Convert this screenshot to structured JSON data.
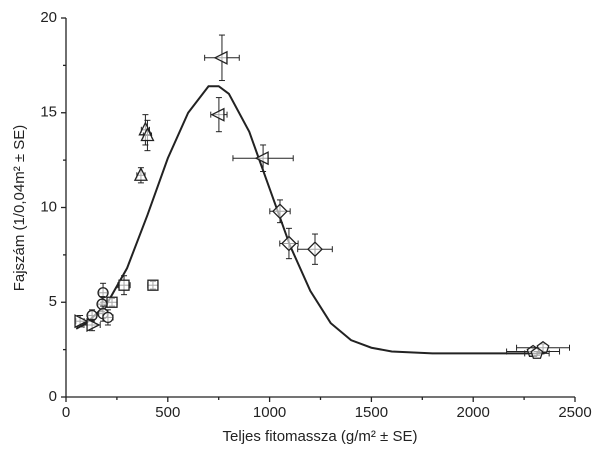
{
  "chart_data": {
    "type": "scatter",
    "x_label": "Teljes fitomassza (g/m² ± SE)",
    "y_label": "Fajszám (1/0,04m² ± SE)",
    "xlim": [
      0,
      2500
    ],
    "xticks": [
      0,
      500,
      1000,
      1500,
      2000,
      2500
    ],
    "ylim": [
      0,
      20
    ],
    "yticks": [
      0,
      5,
      10,
      15,
      20
    ],
    "color": "#222222",
    "series": [
      {
        "marker": "triangle-left",
        "x": [
          766,
          751,
          968
        ],
        "y": [
          17.9,
          14.9,
          12.6
        ],
        "xerr": [
          85,
          40,
          148
        ],
        "yerr": [
          1.2,
          0.9,
          0.7
        ]
      },
      {
        "marker": "triangle-up",
        "x": [
          390,
          400,
          368
        ],
        "y": [
          14.1,
          13.8,
          11.7
        ],
        "xerr": [
          20,
          20,
          20
        ],
        "yerr": [
          0.8,
          0.8,
          0.4
        ]
      },
      {
        "marker": "square",
        "x": [
          285,
          427,
          226
        ],
        "y": [
          5.9,
          5.9,
          5.0
        ],
        "xerr": [
          30,
          25,
          25
        ],
        "yerr": [
          0.5,
          0.2,
          0.2
        ]
      },
      {
        "marker": "diamond",
        "x": [
          1051,
          1095,
          1223
        ],
        "y": [
          9.8,
          8.1,
          7.8
        ],
        "xerr": [
          50,
          45,
          85
        ],
        "yerr": [
          0.6,
          0.8,
          0.8
        ]
      },
      {
        "marker": "circle",
        "x": [
          182,
          177,
          182,
          206,
          128
        ],
        "y": [
          5.5,
          4.9,
          4.4,
          4.2,
          4.3
        ],
        "xerr": [
          20,
          20,
          20,
          25,
          20
        ],
        "yerr": [
          0.5,
          0.4,
          0.4,
          0.4,
          0.3
        ]
      },
      {
        "marker": "triangle-right",
        "x": [
          69,
          128
        ],
        "y": [
          4.0,
          3.8
        ],
        "xerr": [
          20,
          40
        ],
        "yerr": [
          0.3,
          0.3
        ]
      },
      {
        "marker": "pentagon",
        "x": [
          2294,
          2343,
          2313
        ],
        "y": [
          2.4,
          2.6,
          2.3
        ],
        "xerr": [
          130,
          130,
          60
        ],
        "yerr": [
          0.2,
          0.2,
          0.1
        ]
      }
    ],
    "fit": {
      "x": [
        50,
        100,
        200,
        300,
        400,
        500,
        600,
        700,
        750,
        800,
        900,
        1000,
        1100,
        1200,
        1300,
        1400,
        1500,
        1600,
        1800,
        2000,
        2350
      ],
      "y": [
        3.6,
        3.9,
        4.9,
        6.8,
        9.6,
        12.6,
        15.0,
        16.4,
        16.4,
        16.0,
        14.0,
        11.0,
        8.0,
        5.6,
        3.9,
        3.0,
        2.6,
        2.4,
        2.3,
        2.3,
        2.3
      ]
    }
  }
}
